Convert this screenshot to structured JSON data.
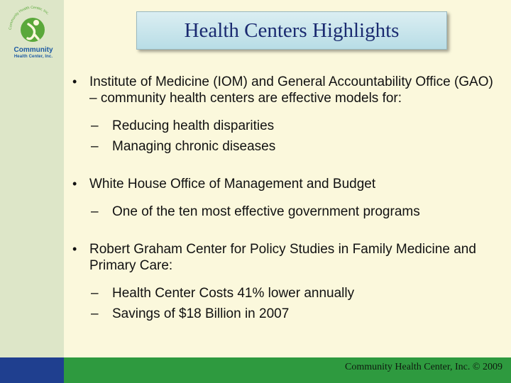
{
  "slide": {
    "title": "Health Centers Highlights",
    "footer": "Community Health Center, Inc. © 2009"
  },
  "logo": {
    "ring_text": "Community Health Center, Inc.",
    "name_line1": "Community",
    "name_line2": "Health Center, Inc."
  },
  "colors": {
    "background": "#fbf8dc",
    "left_bar": "#dde6c8",
    "bottom_bar": "#2e9a3f",
    "bottom_bar_accent": "#1f3f8f",
    "title_text": "#1a2a70",
    "logo_green": "#5aa83a"
  },
  "bullets": [
    {
      "marker": "•",
      "text": "Institute of Medicine (IOM) and General Accountability Office (GAO) – community health centers are effective models for:",
      "subs": [
        {
          "marker": "–",
          "text": "Reducing health disparities"
        },
        {
          "marker": "–",
          "text": "Managing chronic diseases"
        }
      ]
    },
    {
      "marker": "•",
      "text": "White House Office of Management and Budget",
      "subs": [
        {
          "marker": "–",
          "text": "One of the ten most effective government programs"
        }
      ]
    },
    {
      "marker": "•",
      "text": "Robert Graham Center for Policy Studies in Family Medicine and Primary Care:",
      "subs": [
        {
          "marker": "–",
          "text": "Health Center Costs 41% lower annually"
        },
        {
          "marker": "–",
          "text": "Savings of $18 Billion in 2007"
        }
      ]
    }
  ]
}
